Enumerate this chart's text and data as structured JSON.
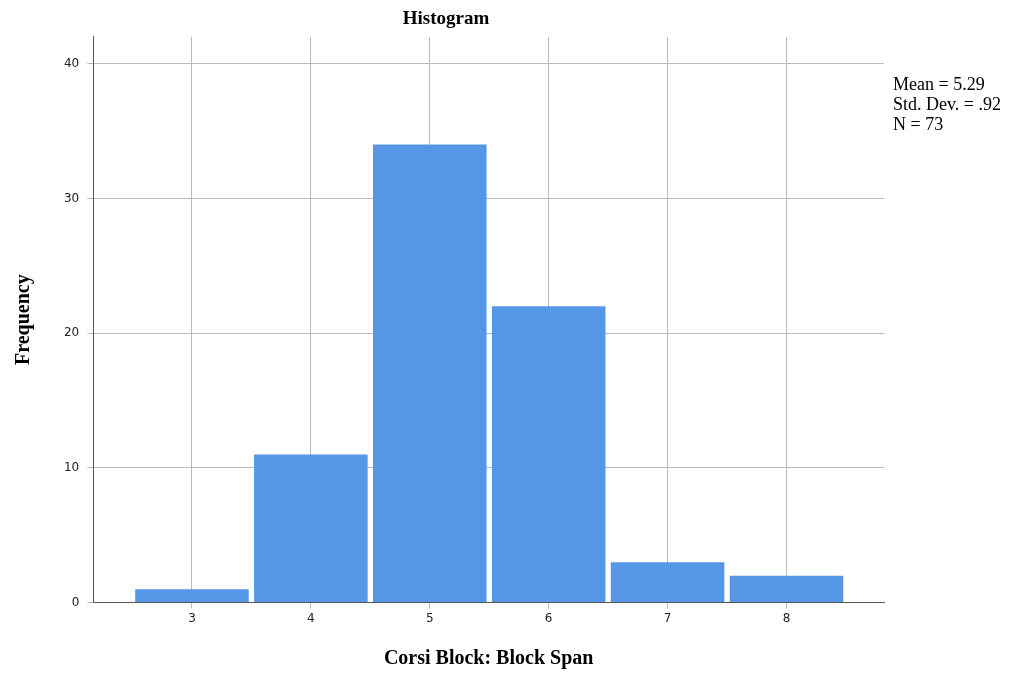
{
  "chart_data": {
    "type": "histogram",
    "title": "Histogram",
    "xlabel": "Corsi Block: Block Span",
    "ylabel": "Frequency",
    "bins": [
      2.5,
      3.5,
      4.5,
      5.5,
      6.5,
      7.5,
      8.5
    ],
    "values": [
      1,
      11,
      34,
      22,
      3,
      2
    ],
    "color": "#5596e6",
    "xlim": [
      2.17,
      8.82
    ],
    "xticks": [
      3,
      4,
      5,
      6,
      7,
      8
    ],
    "ylim": [
      0,
      42
    ],
    "yticks": [
      0,
      10,
      20,
      30,
      40
    ],
    "grid": true,
    "annotations": [
      "Mean = 5.29",
      "Std. Dev. = .92",
      "N = 73"
    ]
  }
}
